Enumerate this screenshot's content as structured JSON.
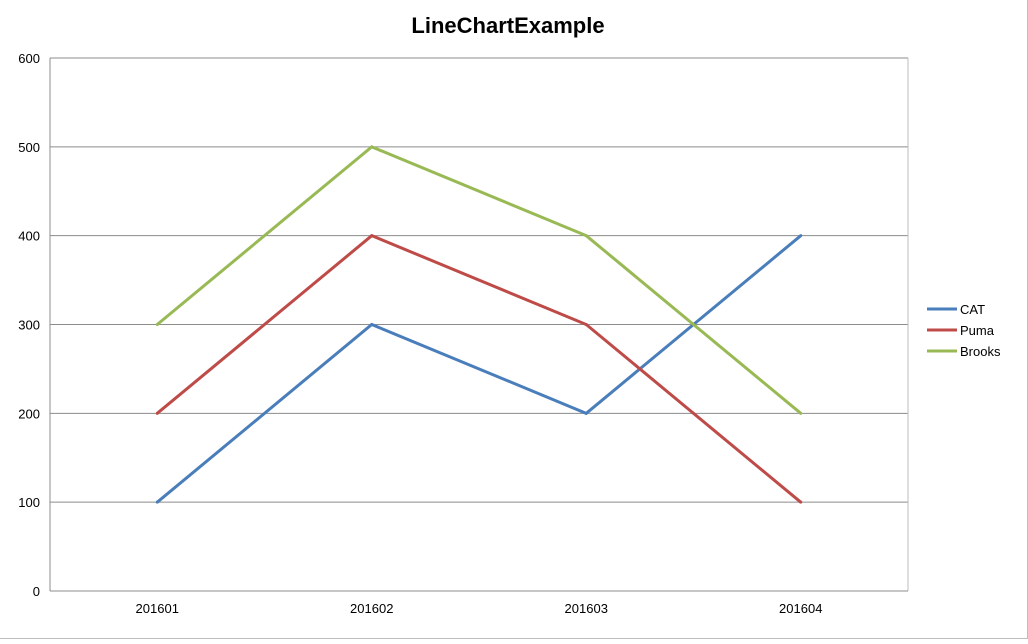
{
  "chart_data": {
    "type": "line",
    "title": "LineChartExample",
    "xlabel": "",
    "ylabel": "",
    "categories": [
      "201601",
      "201602",
      "201603",
      "201604"
    ],
    "series": [
      {
        "name": "CAT",
        "values": [
          100,
          300,
          200,
          400
        ],
        "color": "#4a7ebb"
      },
      {
        "name": "Puma",
        "values": [
          200,
          400,
          300,
          100
        ],
        "color": "#be4b48"
      },
      {
        "name": "Brooks",
        "values": [
          300,
          500,
          400,
          200
        ],
        "color": "#98b954"
      }
    ],
    "ylim": [
      0,
      600
    ],
    "yticks": [
      "0",
      "100",
      "200",
      "300",
      "400",
      "500",
      "600"
    ],
    "grid": true,
    "legend": "right",
    "gridline_color": "#8c8c8c"
  }
}
